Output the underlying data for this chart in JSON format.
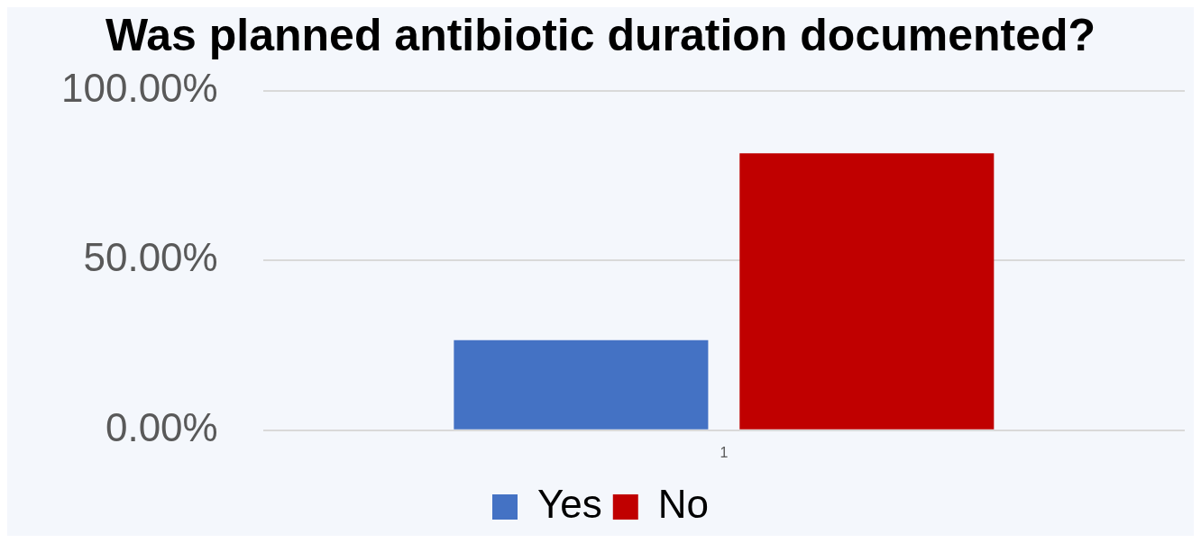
{
  "chart_data": {
    "type": "bar",
    "title": "Was planned antibiotic duration documented?",
    "categories": [
      "1"
    ],
    "series": [
      {
        "name": "Yes",
        "color": "#4472c4",
        "values": [
          26.5
        ]
      },
      {
        "name": "No",
        "color": "#c00000",
        "values": [
          81.5
        ]
      }
    ],
    "ylim": [
      0,
      100
    ],
    "yticks": [
      {
        "value": 0,
        "label": "0.00%"
      },
      {
        "value": 50,
        "label": "50.00%"
      },
      {
        "value": 100,
        "label": "100.00%"
      }
    ],
    "grid": "y",
    "legend": "bottom"
  }
}
